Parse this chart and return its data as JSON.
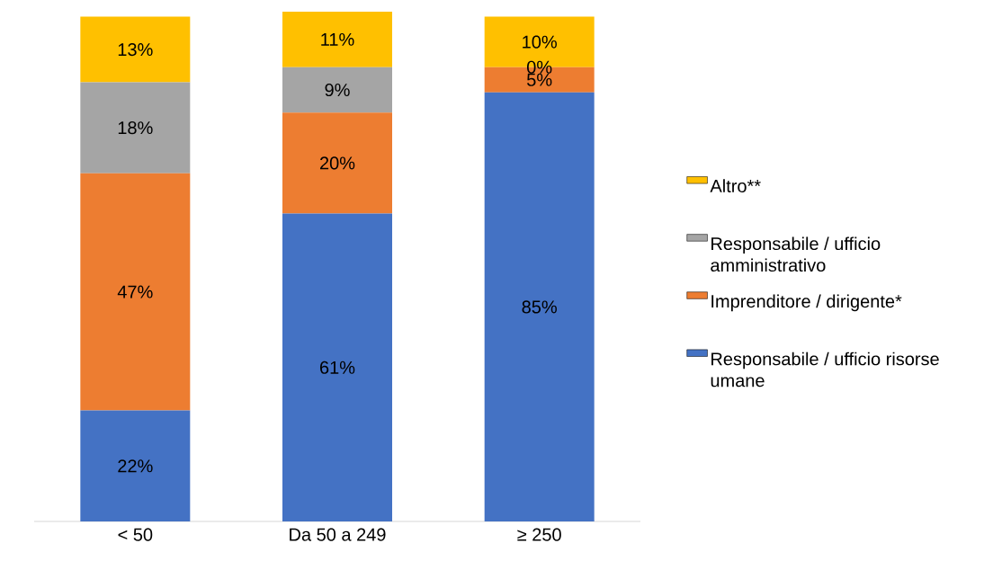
{
  "chart_data": {
    "type": "bar",
    "stacked": true,
    "legend": "right",
    "categories": [
      "< 50",
      "Da 50 a 249",
      "≥ 250"
    ],
    "series": [
      {
        "name": "Responsabile / ufficio risorse umane",
        "color": "#4472c4",
        "values": [
          22,
          61,
          85
        ],
        "value_labels": [
          "22%",
          "61%",
          "85%"
        ]
      },
      {
        "name": "Imprenditore / dirigente*",
        "color": "#ed7d31",
        "values": [
          47,
          20,
          5
        ],
        "value_labels": [
          "47%",
          "20%",
          "5%"
        ]
      },
      {
        "name": "Responsabile / ufficio amministrativo",
        "color": "#a5a5a5",
        "values": [
          18,
          9,
          0
        ],
        "value_labels": [
          "18%",
          "9%",
          "0%"
        ]
      },
      {
        "name": "Altro**",
        "color": "#ffc000",
        "values": [
          13,
          11,
          10
        ],
        "value_labels": [
          "13%",
          "11%",
          "10%"
        ]
      }
    ]
  }
}
